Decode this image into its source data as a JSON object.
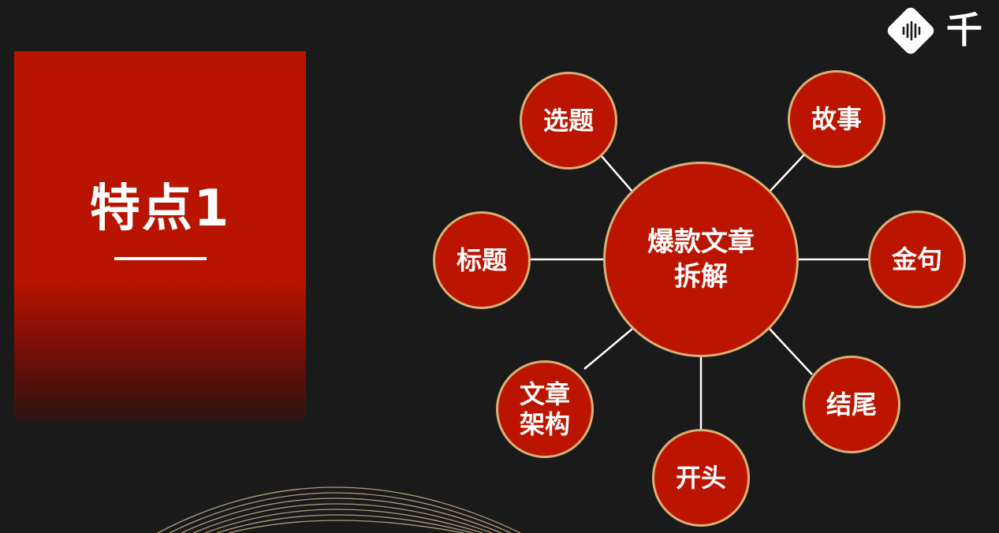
{
  "slide": {
    "title": "特点1",
    "logo_text": "千"
  },
  "diagram": {
    "center": {
      "line1": "爆款文章",
      "line2": "拆解"
    },
    "nodes": {
      "xuanti": "选题",
      "gushi": "故事",
      "biaoti": "标题",
      "jinju": "金句",
      "wenzhang_line1": "文章",
      "wenzhang_line2": "架构",
      "jiewei": "结尾",
      "kaitou": "开头"
    }
  },
  "colors": {
    "background": "#1a1a1a",
    "accent_red": "#bb1400",
    "node_border": "#d7b176",
    "line": "#ffffff"
  }
}
